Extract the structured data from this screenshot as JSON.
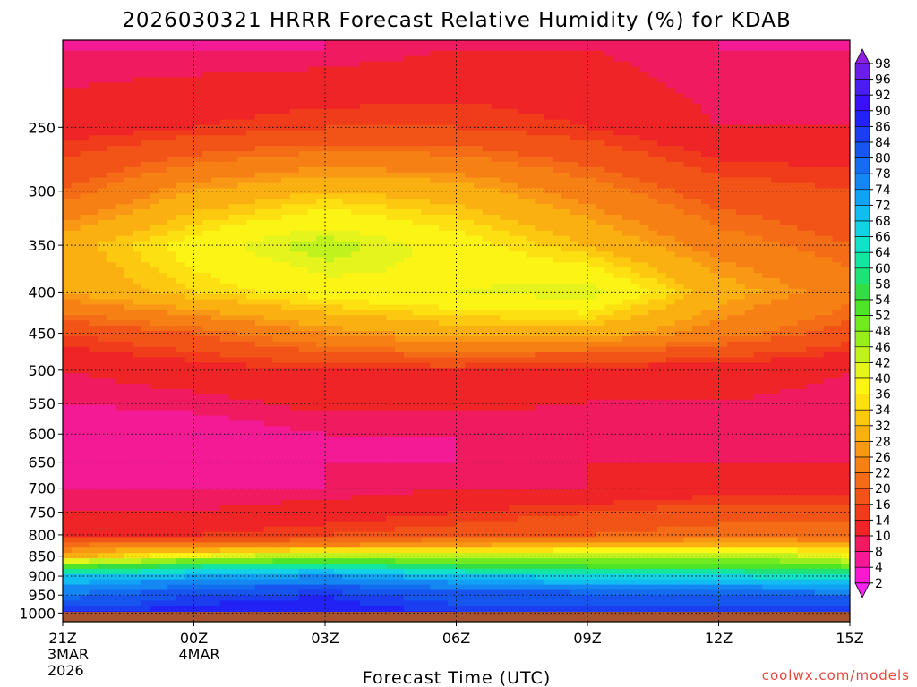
{
  "chart_data": {
    "type": "heatmap",
    "title": "2026030321 HRRR Forecast Relative Humidity (%) for KDAB",
    "xlabel": "Forecast Time (UTC)",
    "ylabel": "",
    "y_axis": "pressure (hPa), log scale, inverted",
    "ylim": [
      1025,
      195
    ],
    "xlim": [
      0,
      18
    ],
    "x_ticks": [
      {
        "hour": 0,
        "lines": [
          "21Z",
          "3MAR",
          "2026"
        ]
      },
      {
        "hour": 3,
        "lines": [
          "00Z",
          "4MAR"
        ]
      },
      {
        "hour": 6,
        "lines": [
          "03Z"
        ]
      },
      {
        "hour": 9,
        "lines": [
          "06Z"
        ]
      },
      {
        "hour": 12,
        "lines": [
          "09Z"
        ]
      },
      {
        "hour": 15,
        "lines": [
          "12Z"
        ]
      },
      {
        "hour": 18,
        "lines": [
          "15Z"
        ]
      }
    ],
    "y_ticks": [
      250,
      300,
      350,
      400,
      450,
      500,
      550,
      600,
      650,
      700,
      750,
      800,
      850,
      900,
      950,
      1000
    ],
    "grid": true,
    "colorbar": {
      "levels": [
        98,
        96,
        92,
        90,
        86,
        84,
        80,
        78,
        74,
        72,
        68,
        66,
        64,
        60,
        58,
        54,
        52,
        48,
        46,
        42,
        40,
        36,
        34,
        32,
        28,
        26,
        22,
        20,
        16,
        14,
        10,
        8,
        4,
        2
      ],
      "colors": [
        "#8c1fe0",
        "#6a1ee8",
        "#4a1ef0",
        "#3a10f8",
        "#2222f4",
        "#1a3ef0",
        "#1655ee",
        "#146cf0",
        "#1487f2",
        "#10a2f4",
        "#12bcf0",
        "#12d2e4",
        "#12e2c8",
        "#14e6a0",
        "#1ee276",
        "#34de42",
        "#4ee428",
        "#72ea20",
        "#98ee1c",
        "#c0f21e",
        "#e4f41c",
        "#fcf414",
        "#fce012",
        "#fcc810",
        "#fab010",
        "#f89814",
        "#f68014",
        "#f46c16",
        "#f25418",
        "#f03c1a",
        "#ee2426",
        "#f01a60",
        "#f41a96",
        "#f81ad0",
        "#fa24f0"
      ],
      "extend": "both"
    },
    "rh_profiles": [
      {
        "hour": 0,
        "values": [
          86,
          78,
          68,
          52,
          30,
          22,
          14,
          10,
          8,
          8,
          6,
          10,
          16,
          28,
          30,
          20,
          12,
          8
        ]
      },
      {
        "hour": 3,
        "values": [
          88,
          84,
          72,
          60,
          40,
          24,
          14,
          10,
          8,
          8,
          6,
          12,
          20,
          34,
          38,
          28,
          14,
          8
        ]
      },
      {
        "hour": 6,
        "values": [
          88,
          86,
          74,
          62,
          46,
          26,
          16,
          12,
          8,
          8,
          8,
          14,
          26,
          38,
          44,
          32,
          16,
          8
        ]
      },
      {
        "hour": 9,
        "values": [
          86,
          82,
          70,
          58,
          44,
          28,
          18,
          14,
          10,
          8,
          8,
          14,
          30,
          40,
          38,
          30,
          16,
          10
        ]
      },
      {
        "hour": 12,
        "values": [
          86,
          82,
          66,
          54,
          44,
          30,
          20,
          16,
          10,
          10,
          8,
          12,
          30,
          42,
          32,
          24,
          14,
          10
        ]
      },
      {
        "hour": 15,
        "values": [
          86,
          80,
          66,
          54,
          46,
          32,
          22,
          18,
          12,
          10,
          8,
          12,
          24,
          30,
          24,
          18,
          10,
          8
        ]
      },
      {
        "hour": 18,
        "values": [
          86,
          80,
          64,
          52,
          40,
          30,
          22,
          18,
          12,
          10,
          8,
          10,
          18,
          24,
          20,
          16,
          10,
          8
        ]
      }
    ],
    "profile_levels": [
      1000,
      950,
      900,
      875,
      850,
      825,
      800,
      750,
      700,
      650,
      600,
      500,
      450,
      400,
      350,
      300,
      250,
      200
    ]
  },
  "credit": "coolwx.com/models"
}
